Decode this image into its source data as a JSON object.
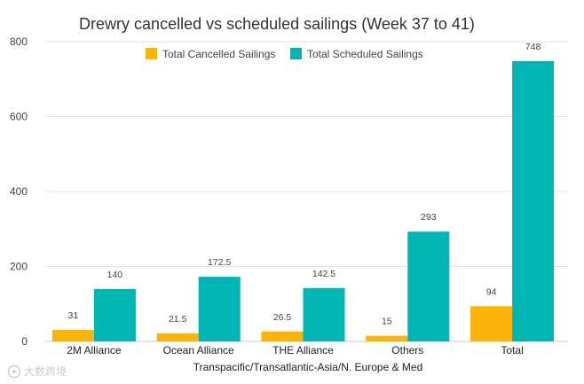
{
  "chart_data": {
    "type": "bar",
    "title": "Drewry cancelled vs scheduled sailings (Week 37 to 41)",
    "xlabel": "Transpacific/Transatlantic-Asia/N. Europe & Med",
    "ylabel": "",
    "ylim": [
      0,
      800
    ],
    "yticks": [
      0,
      200,
      400,
      600,
      800
    ],
    "grid": true,
    "legend_position": "top",
    "categories": [
      "2M Alliance",
      "Ocean Alliance",
      "THE Alliance",
      "Others",
      "Total"
    ],
    "series": [
      {
        "name": "Total Cancelled Sailings",
        "color": "#FBB40A",
        "values": [
          31,
          21.5,
          26.5,
          15,
          94
        ],
        "labels": [
          "31",
          "21.5",
          "26.5",
          "15",
          "94"
        ]
      },
      {
        "name": "Total Scheduled Sailings",
        "color": "#00B5B4",
        "values": [
          140,
          172.5,
          142.5,
          293,
          748
        ],
        "labels": [
          "140",
          "172.5",
          "142.5",
          "293",
          "748"
        ]
      }
    ]
  },
  "watermark": {
    "text": "大数跨境",
    "icon": "brand-logo-icon"
  }
}
